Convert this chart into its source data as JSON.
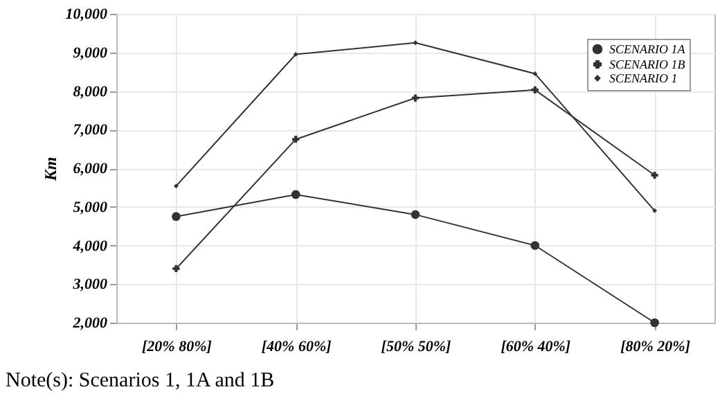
{
  "chart_data": {
    "type": "line",
    "ylabel": "Km",
    "categories": [
      "[20% 80%]",
      "[40% 60%]",
      "[50% 50%]",
      "[60% 40%]",
      "[80% 20%]"
    ],
    "series": [
      {
        "name": "SCENARIO 1A",
        "color": "#333333",
        "marker": "circle",
        "values": [
          4750,
          5320,
          4800,
          4000,
          2000
        ]
      },
      {
        "name": "SCENARIO 1B",
        "color": "#333333",
        "marker": "cross",
        "values": [
          3400,
          6750,
          7820,
          8030,
          5820
        ]
      },
      {
        "name": "SCENARIO 1",
        "color": "#333333",
        "marker": "diamond",
        "values": [
          5540,
          8950,
          9250,
          8450,
          4900
        ]
      }
    ],
    "ylim": [
      2000,
      10000
    ],
    "yticks": [
      {
        "value": 2000,
        "label": "2,000"
      },
      {
        "value": 3000,
        "label": "3,000"
      },
      {
        "value": 4000,
        "label": "4,000"
      },
      {
        "value": 5000,
        "label": "5,000"
      },
      {
        "value": 6000,
        "label": "6,000"
      },
      {
        "value": 7000,
        "label": "7,000"
      },
      {
        "value": 8000,
        "label": "8,000"
      },
      {
        "value": 9000,
        "label": "9,000"
      },
      {
        "value": 10000,
        "label": "10,000"
      }
    ],
    "grid": true,
    "legend": "top right",
    "annotations": [
      "Note(s): Scenarios 1, 1A and 1B"
    ]
  }
}
